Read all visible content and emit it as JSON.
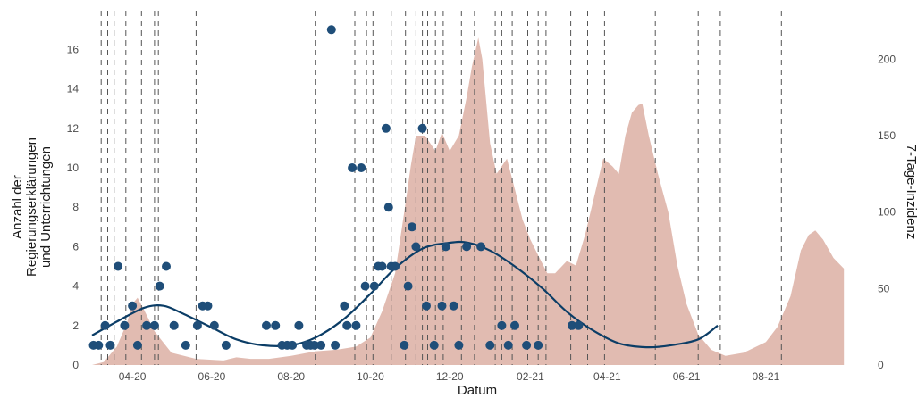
{
  "chart_data": {
    "type": "scatter",
    "x_label": "Datum",
    "y_label_left": [
      "Anzahl der",
      "Regierungserklärungen",
      "und Unterrichtungen"
    ],
    "y_label_right": "7-Tage-Inzidenz",
    "x_range": [
      "2020-03-01",
      "2021-10-15"
    ],
    "y_left_range": [
      0,
      17.6
    ],
    "y_right_range": [
      0,
      227
    ],
    "x_ticks": [
      {
        "date": "2020-04-01",
        "label": "04-20"
      },
      {
        "date": "2020-06-01",
        "label": "06-20"
      },
      {
        "date": "2020-08-01",
        "label": "08-20"
      },
      {
        "date": "2020-10-01",
        "label": "10-20"
      },
      {
        "date": "2020-12-01",
        "label": "12-20"
      },
      {
        "date": "2021-02-01",
        "label": "02-21"
      },
      {
        "date": "2021-04-01",
        "label": "04-21"
      },
      {
        "date": "2021-06-01",
        "label": "06-21"
      },
      {
        "date": "2021-08-01",
        "label": "08-21"
      }
    ],
    "y_left_ticks": [
      0,
      2,
      4,
      6,
      8,
      10,
      12,
      14,
      16
    ],
    "y_right_ticks": [
      0,
      50,
      100,
      150,
      200
    ],
    "colors": {
      "points": "#1f4e79",
      "smooth": "#0b3d66",
      "area": "#e1bbb1",
      "vlines": "#555555"
    },
    "vlines": [
      "2020-03-08",
      "2020-03-13",
      "2020-03-18",
      "2020-03-27",
      "2020-04-08",
      "2020-04-18",
      "2020-04-21",
      "2020-05-20",
      "2020-08-20",
      "2020-09-19",
      "2020-09-28",
      "2020-10-03",
      "2020-10-17",
      "2020-10-28",
      "2020-11-05",
      "2020-11-10",
      "2020-11-14",
      "2020-11-20",
      "2020-11-26",
      "2020-12-10",
      "2020-12-20",
      "2021-01-05",
      "2021-01-10",
      "2021-01-18",
      "2021-01-30",
      "2021-02-07",
      "2021-02-13",
      "2021-02-23",
      "2021-03-04",
      "2021-03-17",
      "2021-03-28",
      "2021-03-30",
      "2021-05-08",
      "2021-06-10",
      "2021-06-27",
      "2021-08-13"
    ],
    "incidence": [
      [
        "2020-03-01",
        0
      ],
      [
        "2020-03-10",
        2
      ],
      [
        "2020-03-20",
        12
      ],
      [
        "2020-03-28",
        28
      ],
      [
        "2020-04-01",
        40
      ],
      [
        "2020-04-05",
        44
      ],
      [
        "2020-04-10",
        36
      ],
      [
        "2020-04-18",
        22
      ],
      [
        "2020-05-01",
        8
      ],
      [
        "2020-05-20",
        4
      ],
      [
        "2020-06-10",
        3
      ],
      [
        "2020-06-20",
        5
      ],
      [
        "2020-07-01",
        4
      ],
      [
        "2020-07-15",
        4
      ],
      [
        "2020-08-01",
        6
      ],
      [
        "2020-08-20",
        9
      ],
      [
        "2020-09-05",
        10
      ],
      [
        "2020-09-20",
        12
      ],
      [
        "2020-10-01",
        18
      ],
      [
        "2020-10-10",
        35
      ],
      [
        "2020-10-20",
        60
      ],
      [
        "2020-10-27",
        100
      ],
      [
        "2020-11-01",
        130
      ],
      [
        "2020-11-05",
        150
      ],
      [
        "2020-11-12",
        150
      ],
      [
        "2020-11-20",
        140
      ],
      [
        "2020-11-25",
        152
      ],
      [
        "2020-12-01",
        140
      ],
      [
        "2020-12-08",
        150
      ],
      [
        "2020-12-14",
        175
      ],
      [
        "2020-12-18",
        195
      ],
      [
        "2020-12-23",
        214
      ],
      [
        "2020-12-26",
        200
      ],
      [
        "2021-01-01",
        145
      ],
      [
        "2021-01-06",
        125
      ],
      [
        "2021-01-14",
        135
      ],
      [
        "2021-01-20",
        115
      ],
      [
        "2021-01-26",
        95
      ],
      [
        "2021-02-01",
        82
      ],
      [
        "2021-02-08",
        70
      ],
      [
        "2021-02-14",
        60
      ],
      [
        "2021-02-20",
        60
      ],
      [
        "2021-03-01",
        68
      ],
      [
        "2021-03-08",
        65
      ],
      [
        "2021-03-15",
        85
      ],
      [
        "2021-03-22",
        110
      ],
      [
        "2021-03-29",
        135
      ],
      [
        "2021-04-05",
        130
      ],
      [
        "2021-04-10",
        125
      ],
      [
        "2021-04-15",
        150
      ],
      [
        "2021-04-20",
        165
      ],
      [
        "2021-04-25",
        170
      ],
      [
        "2021-04-28",
        171
      ],
      [
        "2021-05-03",
        150
      ],
      [
        "2021-05-10",
        125
      ],
      [
        "2021-05-18",
        100
      ],
      [
        "2021-05-25",
        65
      ],
      [
        "2021-06-01",
        40
      ],
      [
        "2021-06-10",
        20
      ],
      [
        "2021-06-20",
        10
      ],
      [
        "2021-07-01",
        6
      ],
      [
        "2021-07-15",
        8
      ],
      [
        "2021-08-01",
        15
      ],
      [
        "2021-08-10",
        25
      ],
      [
        "2021-08-20",
        45
      ],
      [
        "2021-08-28",
        75
      ],
      [
        "2021-09-03",
        85
      ],
      [
        "2021-09-08",
        88
      ],
      [
        "2021-09-14",
        82
      ],
      [
        "2021-09-22",
        70
      ],
      [
        "2021-09-30",
        63
      ]
    ],
    "points": [
      [
        "2020-03-02",
        1
      ],
      [
        "2020-03-06",
        1
      ],
      [
        "2020-03-11",
        2
      ],
      [
        "2020-03-15",
        1
      ],
      [
        "2020-03-21",
        5
      ],
      [
        "2020-03-26",
        2
      ],
      [
        "2020-04-01",
        3
      ],
      [
        "2020-04-05",
        1
      ],
      [
        "2020-04-12",
        2
      ],
      [
        "2020-04-18",
        2
      ],
      [
        "2020-04-22",
        4
      ],
      [
        "2020-04-27",
        5
      ],
      [
        "2020-05-03",
        2
      ],
      [
        "2020-05-12",
        1
      ],
      [
        "2020-05-21",
        2
      ],
      [
        "2020-05-25",
        3
      ],
      [
        "2020-05-29",
        3
      ],
      [
        "2020-06-03",
        2
      ],
      [
        "2020-06-12",
        1
      ],
      [
        "2020-07-13",
        2
      ],
      [
        "2020-07-20",
        2
      ],
      [
        "2020-07-25",
        1
      ],
      [
        "2020-07-29",
        1
      ],
      [
        "2020-08-02",
        1
      ],
      [
        "2020-08-07",
        2
      ],
      [
        "2020-08-13",
        1
      ],
      [
        "2020-08-16",
        1
      ],
      [
        "2020-08-19",
        1
      ],
      [
        "2020-08-24",
        1
      ],
      [
        "2020-09-01",
        17
      ],
      [
        "2020-09-04",
        1
      ],
      [
        "2020-09-11",
        3
      ],
      [
        "2020-09-13",
        2
      ],
      [
        "2020-09-17",
        10
      ],
      [
        "2020-09-20",
        2
      ],
      [
        "2020-09-24",
        10
      ],
      [
        "2020-09-27",
        4
      ],
      [
        "2020-10-04",
        4
      ],
      [
        "2020-10-07",
        5
      ],
      [
        "2020-10-10",
        5
      ],
      [
        "2020-10-13",
        12
      ],
      [
        "2020-10-15",
        8
      ],
      [
        "2020-10-17",
        5
      ],
      [
        "2020-10-20",
        5
      ],
      [
        "2020-10-27",
        1
      ],
      [
        "2020-10-30",
        4
      ],
      [
        "2020-11-02",
        7
      ],
      [
        "2020-11-05",
        6
      ],
      [
        "2020-11-10",
        12
      ],
      [
        "2020-11-13",
        3
      ],
      [
        "2020-11-19",
        1
      ],
      [
        "2020-11-25",
        3
      ],
      [
        "2020-11-28",
        6
      ],
      [
        "2020-12-04",
        3
      ],
      [
        "2020-12-08",
        1
      ],
      [
        "2020-12-14",
        6
      ],
      [
        "2020-12-25",
        6
      ],
      [
        "2021-01-01",
        1
      ],
      [
        "2021-01-10",
        2
      ],
      [
        "2021-01-15",
        1
      ],
      [
        "2021-01-20",
        2
      ],
      [
        "2021-01-29",
        1
      ],
      [
        "2021-02-07",
        1
      ],
      [
        "2021-03-05",
        2
      ],
      [
        "2021-03-10",
        2
      ]
    ],
    "smooth": [
      [
        "2020-03-01",
        1.5
      ],
      [
        "2020-03-20",
        2.2
      ],
      [
        "2020-04-10",
        2.9
      ],
      [
        "2020-04-25",
        3.0
      ],
      [
        "2020-05-10",
        2.6
      ],
      [
        "2020-06-01",
        1.9
      ],
      [
        "2020-06-20",
        1.3
      ],
      [
        "2020-07-10",
        1.0
      ],
      [
        "2020-08-01",
        1.0
      ],
      [
        "2020-08-20",
        1.4
      ],
      [
        "2020-09-10",
        2.3
      ],
      [
        "2020-10-01",
        3.6
      ],
      [
        "2020-10-20",
        4.9
      ],
      [
        "2020-11-10",
        5.9
      ],
      [
        "2020-12-01",
        6.2
      ],
      [
        "2020-12-15",
        6.2
      ],
      [
        "2021-01-01",
        5.8
      ],
      [
        "2021-01-20",
        5.0
      ],
      [
        "2021-02-10",
        3.9
      ],
      [
        "2021-03-01",
        2.7
      ],
      [
        "2021-03-20",
        1.8
      ],
      [
        "2021-04-10",
        1.1
      ],
      [
        "2021-05-01",
        0.9
      ],
      [
        "2021-05-20",
        1.0
      ],
      [
        "2021-06-10",
        1.3
      ],
      [
        "2021-06-25",
        2.0
      ]
    ]
  }
}
